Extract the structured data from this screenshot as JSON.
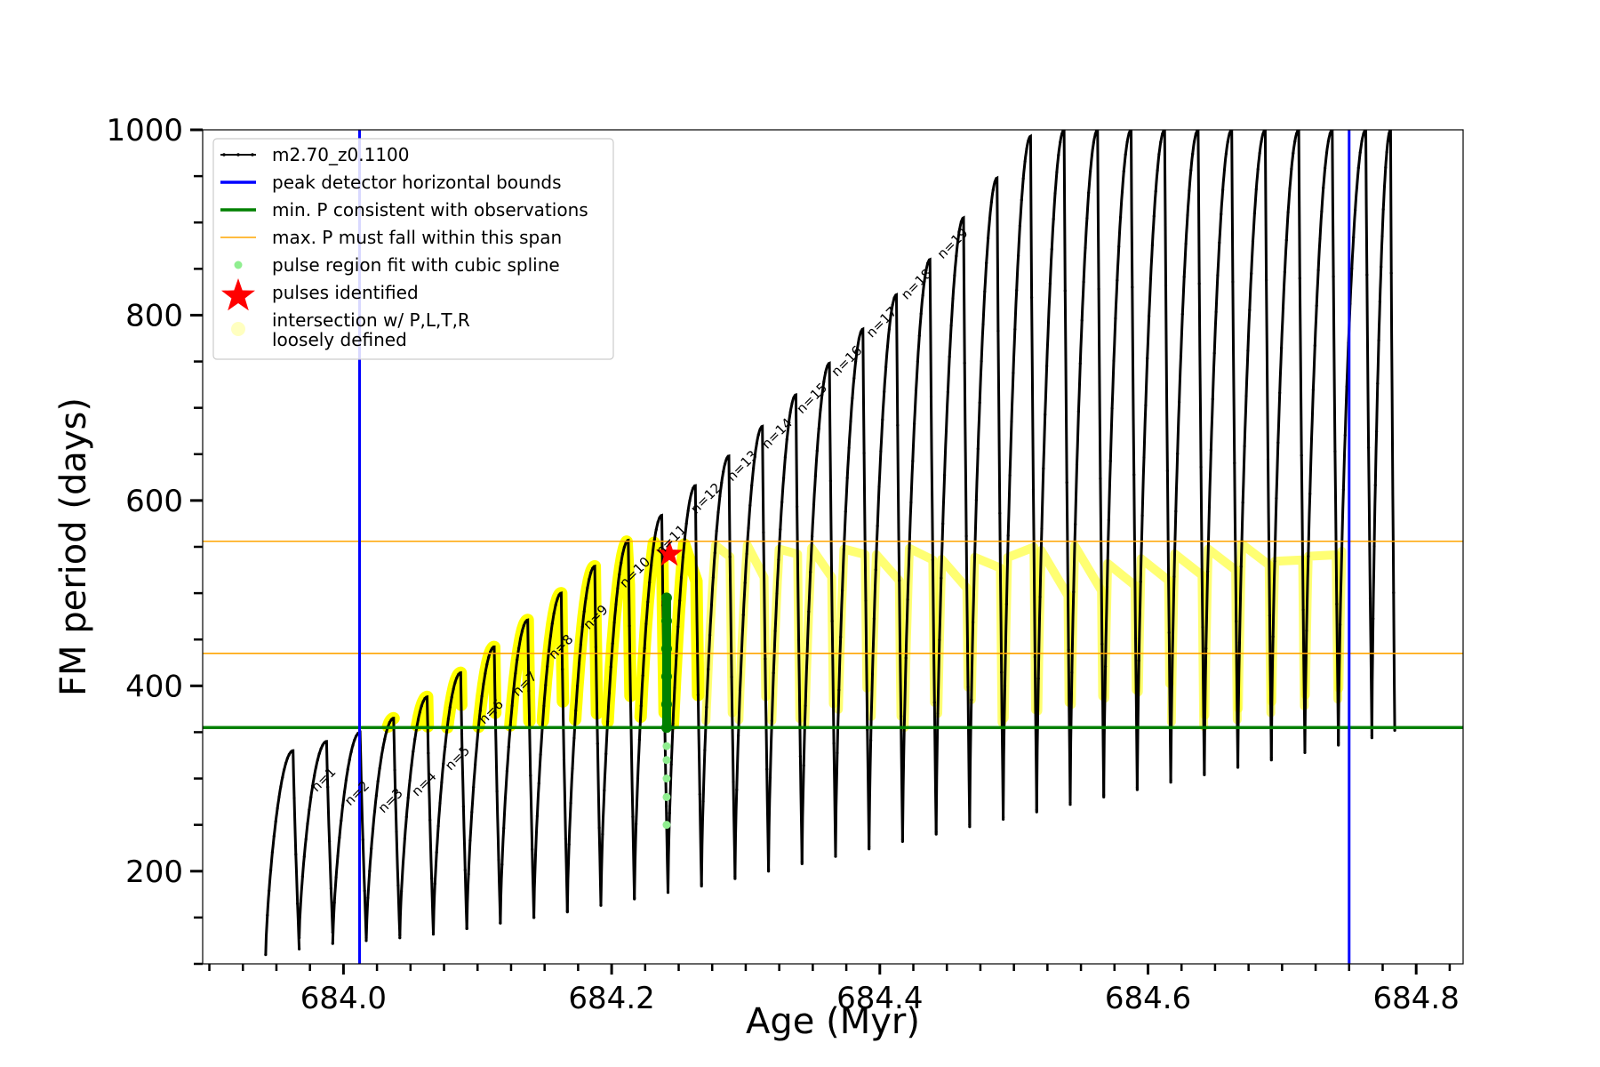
{
  "chart_data": {
    "type": "line",
    "title": "",
    "xlabel": "Age (Myr)",
    "ylabel": "FM period (days)",
    "xlim": [
      683.895,
      684.835
    ],
    "ylim": [
      100,
      1000
    ],
    "xticks": [
      684.0,
      684.2,
      684.4,
      684.6,
      684.8
    ],
    "xtick_labels": [
      "684.0",
      "684.2",
      "684.4",
      "684.6",
      "684.8"
    ],
    "yticks": [
      200,
      400,
      600,
      800,
      1000
    ],
    "ytick_labels": [
      "200",
      "400",
      "600",
      "800",
      "1000"
    ],
    "grid": false,
    "legend_position": "top-left",
    "legend": [
      {
        "label": "m2.70_z0.1100",
        "kind": "line-marker",
        "color": "#000000"
      },
      {
        "label": "peak detector horizontal bounds",
        "kind": "line",
        "color": "#0000ff"
      },
      {
        "label": "min. P consistent with observations",
        "kind": "line",
        "color": "#008000"
      },
      {
        "label": "max. P must fall within this span",
        "kind": "line-thin",
        "color": "#ffa500"
      },
      {
        "label": "pulse region fit with cubic spline",
        "kind": "dot",
        "color": "#90ee90"
      },
      {
        "label": "pulses identified",
        "kind": "star",
        "color": "#ff0000"
      },
      {
        "label": "intersection w/ P,L,T,R\nloosely defined",
        "kind": "dot-big",
        "color": "#ffffc0"
      }
    ],
    "reference_lines": {
      "vertical_blue": [
        684.012,
        684.75
      ],
      "horizontal_green": 355,
      "horizontal_orange": [
        435,
        556
      ]
    },
    "series": [
      {
        "name": "m2.70_z0.1100",
        "color": "#000000",
        "cycles": [
          {
            "start": 683.942,
            "end": 683.967,
            "min": 110,
            "peak": 330
          },
          {
            "start": 683.967,
            "end": 683.992,
            "min": 128,
            "peak": 340
          },
          {
            "start": 683.992,
            "end": 684.017,
            "min": 122,
            "peak": 350
          },
          {
            "start": 684.017,
            "end": 684.042,
            "min": 125,
            "peak": 365
          },
          {
            "start": 684.042,
            "end": 684.067,
            "min": 128,
            "peak": 388
          },
          {
            "start": 684.067,
            "end": 684.092,
            "min": 132,
            "peak": 414
          },
          {
            "start": 684.092,
            "end": 684.117,
            "min": 138,
            "peak": 442
          },
          {
            "start": 684.117,
            "end": 684.142,
            "min": 144,
            "peak": 471
          },
          {
            "start": 684.142,
            "end": 684.167,
            "min": 150,
            "peak": 500
          },
          {
            "start": 684.167,
            "end": 684.192,
            "min": 157,
            "peak": 529
          },
          {
            "start": 684.192,
            "end": 684.217,
            "min": 164,
            "peak": 557
          },
          {
            "start": 684.217,
            "end": 684.242,
            "min": 171,
            "peak": 584
          },
          {
            "start": 684.242,
            "end": 684.267,
            "min": 178,
            "peak": 616
          },
          {
            "start": 684.267,
            "end": 684.292,
            "min": 186,
            "peak": 648
          },
          {
            "start": 684.292,
            "end": 684.317,
            "min": 194,
            "peak": 680
          },
          {
            "start": 684.317,
            "end": 684.342,
            "min": 202,
            "peak": 714
          },
          {
            "start": 684.342,
            "end": 684.367,
            "min": 210,
            "peak": 748
          },
          {
            "start": 684.367,
            "end": 684.392,
            "min": 218,
            "peak": 785
          },
          {
            "start": 684.392,
            "end": 684.417,
            "min": 226,
            "peak": 822
          },
          {
            "start": 684.417,
            "end": 684.442,
            "min": 234,
            "peak": 860
          },
          {
            "start": 684.442,
            "end": 684.467,
            "min": 242,
            "peak": 905
          },
          {
            "start": 684.467,
            "end": 684.492,
            "min": 250,
            "peak": 948
          },
          {
            "start": 684.492,
            "end": 684.517,
            "min": 258,
            "peak": 993
          },
          {
            "start": 684.517,
            "end": 684.542,
            "min": 266,
            "peak": 1000
          },
          {
            "start": 684.542,
            "end": 684.567,
            "min": 274,
            "peak": 1000
          },
          {
            "start": 684.567,
            "end": 684.592,
            "min": 282,
            "peak": 1000
          },
          {
            "start": 684.592,
            "end": 684.617,
            "min": 290,
            "peak": 1000
          },
          {
            "start": 684.617,
            "end": 684.642,
            "min": 298,
            "peak": 1000
          },
          {
            "start": 684.642,
            "end": 684.667,
            "min": 306,
            "peak": 1000
          },
          {
            "start": 684.667,
            "end": 684.692,
            "min": 314,
            "peak": 1000
          },
          {
            "start": 684.692,
            "end": 684.717,
            "min": 322,
            "peak": 1000
          },
          {
            "start": 684.717,
            "end": 684.742,
            "min": 330,
            "peak": 1000
          },
          {
            "start": 684.742,
            "end": 684.767,
            "min": 338,
            "peak": 1000
          },
          {
            "start": 684.767,
            "end": 684.784,
            "min": 346,
            "peak": 1000
          }
        ]
      }
    ],
    "yellow_region": {
      "color": "#ffff00",
      "ymin": 355,
      "ymax": 556,
      "x_start": 684.012,
      "x_end": 684.75
    },
    "spline_points": {
      "x": 684.241,
      "y": [
        250,
        280,
        300,
        320,
        335,
        355,
        380,
        410,
        440,
        470,
        495
      ],
      "color_light": "#90ee90",
      "color_dark": "#008000"
    },
    "pulse_identified": {
      "x": 684.243,
      "y": 542,
      "color": "#ff0000"
    },
    "pulse_labels": [
      {
        "text": "n=1",
        "x": 683.98,
        "y": 285
      },
      {
        "text": "n=2",
        "x": 684.005,
        "y": 270
      },
      {
        "text": "n=3",
        "x": 684.03,
        "y": 262
      },
      {
        "text": "n=4",
        "x": 684.055,
        "y": 280
      },
      {
        "text": "n=5",
        "x": 684.08,
        "y": 308
      },
      {
        "text": "n=6",
        "x": 684.105,
        "y": 358
      },
      {
        "text": "n=7",
        "x": 684.13,
        "y": 388
      },
      {
        "text": "n=8",
        "x": 684.157,
        "y": 428
      },
      {
        "text": "n=9",
        "x": 684.183,
        "y": 460
      },
      {
        "text": "n=10",
        "x": 684.21,
        "y": 505
      },
      {
        "text": "n=11",
        "x": 684.237,
        "y": 540
      },
      {
        "text": "n=12",
        "x": 684.263,
        "y": 585
      },
      {
        "text": "n=13",
        "x": 684.29,
        "y": 620
      },
      {
        "text": "n=14",
        "x": 684.316,
        "y": 655
      },
      {
        "text": "n=15",
        "x": 684.342,
        "y": 693
      },
      {
        "text": "n=16",
        "x": 684.368,
        "y": 733
      },
      {
        "text": "n=17",
        "x": 684.394,
        "y": 775
      },
      {
        "text": "n=18",
        "x": 684.42,
        "y": 816
      },
      {
        "text": "n=19",
        "x": 684.447,
        "y": 860
      }
    ]
  }
}
